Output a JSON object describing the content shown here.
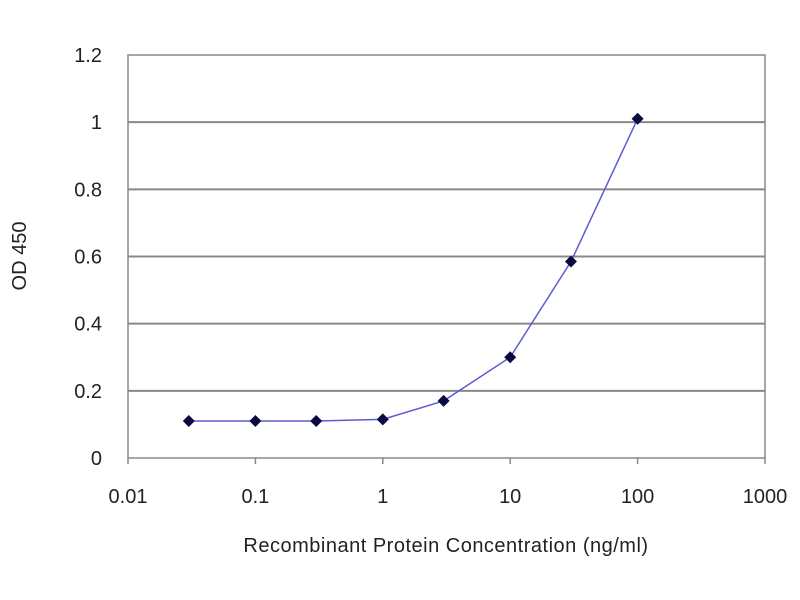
{
  "chart_data": {
    "type": "line",
    "title": "",
    "xlabel": "Recombinant Protein Concentration (ng/ml)",
    "ylabel": "OD 450",
    "xscale": "log",
    "xlim": [
      0.01,
      1000
    ],
    "ylim": [
      0,
      1.2
    ],
    "x_ticks": [
      0.01,
      0.1,
      1,
      10,
      100,
      1000
    ],
    "x_tick_labels": [
      "0.01",
      "0.1",
      "1",
      "10",
      "100",
      "1000"
    ],
    "y_ticks": [
      0,
      0.2,
      0.4,
      0.6,
      0.8,
      1,
      1.2
    ],
    "y_tick_labels": [
      "0",
      "0.2",
      "0.4",
      "0.6",
      "0.8",
      "1",
      "1.2"
    ],
    "grid": "horizontal",
    "legend": "none",
    "series": [
      {
        "x": [
          0.03,
          0.1,
          0.3,
          1,
          3,
          10,
          30,
          100
        ],
        "y": [
          0.11,
          0.11,
          0.11,
          0.115,
          0.17,
          0.3,
          0.585,
          1.01
        ],
        "line_color": "#5b5bd6",
        "marker_color": "#0a0a40"
      }
    ]
  }
}
